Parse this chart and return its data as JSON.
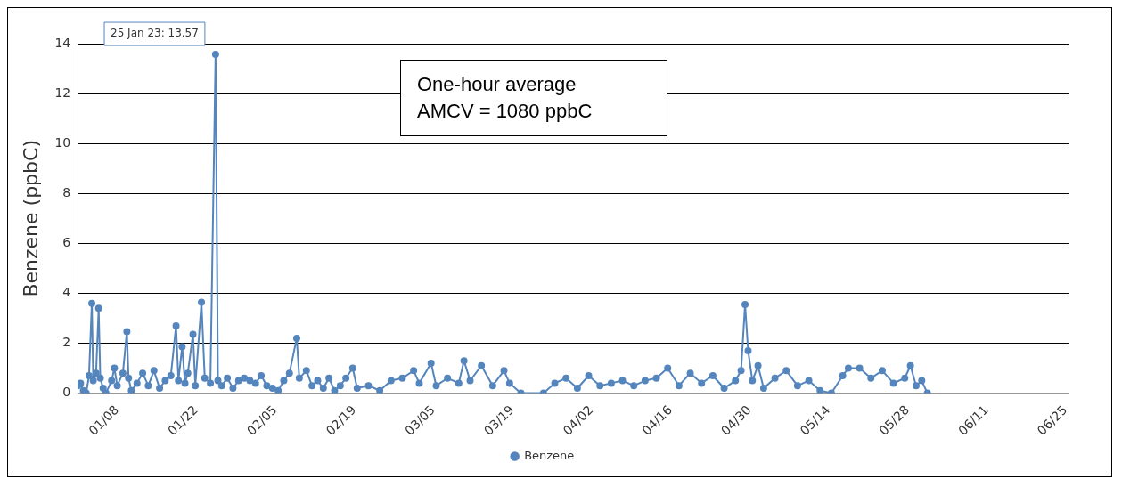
{
  "chart_data": {
    "type": "line",
    "ylabel": "Benzene (ppbC)",
    "annotations": [
      {
        "text": "25 Jan 23: 13.57",
        "x": "--01-25T10:00",
        "y": 13.57
      },
      "One-hour average\nAMCV = 1080 ppbC"
    ],
    "xlim": [
      "--01-01",
      "--06-25T12:00"
    ],
    "xticks": [
      {
        "value": "--01-08",
        "label": "01/08"
      },
      {
        "value": "--01-22",
        "label": "01/22"
      },
      {
        "value": "--02-05",
        "label": "02/05"
      },
      {
        "value": "--02-19",
        "label": "02/19"
      },
      {
        "value": "--03-05",
        "label": "03/05"
      },
      {
        "value": "--03-19",
        "label": "03/19"
      },
      {
        "value": "--04-02",
        "label": "04/02"
      },
      {
        "value": "--04-16",
        "label": "04/16"
      },
      {
        "value": "--04-30",
        "label": "04/30"
      },
      {
        "value": "--05-14",
        "label": "05/14"
      },
      {
        "value": "--05-28",
        "label": "05/28"
      },
      {
        "value": "--06-11",
        "label": "06/11"
      },
      {
        "value": "--06-25",
        "label": "06/25"
      }
    ],
    "ylim": [
      0,
      14
    ],
    "yticks": [
      0,
      2,
      4,
      6,
      8,
      10,
      12,
      14
    ],
    "grid": "y",
    "legend": "bottom",
    "marker": "circle",
    "line_style": "solid",
    "series": [
      {
        "name": "Benzene",
        "color": "#5585bd",
        "x": [
          "--01-01T00:00",
          "--01-01T12:00",
          "--01-02T00:00",
          "--01-02T12:00",
          "--01-03T00:00",
          "--01-03T12:00",
          "--01-03T18:00",
          "--01-04T06:00",
          "--01-04T17:00",
          "--01-05T00:00",
          "--01-05T12:00",
          "--01-06T00:00",
          "--01-07T00:00",
          "--01-07T12:00",
          "--01-08T00:00",
          "--01-09T00:00",
          "--01-09T17:00",
          "--01-10T00:00",
          "--01-10T12:00",
          "--01-11T12:00",
          "--01-12T12:00",
          "--01-13T12:00",
          "--01-14T12:00",
          "--01-15T12:00",
          "--01-16T12:00",
          "--01-17T12:00",
          "--01-18T10:00",
          "--01-18T20:00",
          "--01-19T12:00",
          "--01-20T00:00",
          "--01-20T12:00",
          "--01-21T10:00",
          "--01-21T20:00",
          "--01-22T22:00",
          "--01-23T12:00",
          "--01-24T12:00",
          "--01-25T10:00",
          "--01-25T20:00",
          "--01-26T12:00",
          "--01-27T12:00",
          "--01-28T12:00",
          "--01-29T12:00",
          "--01-30T12:00",
          "--01-31T12:00",
          "--02-01T12:00",
          "--02-02T12:00",
          "--02-03T12:00",
          "--02-04T12:00",
          "--02-05T12:00",
          "--02-06T12:00",
          "--02-07T12:00",
          "--02-08T19:00",
          "--02-09T06:00",
          "--02-10T12:00",
          "--02-11T12:00",
          "--02-12T12:00",
          "--02-13T12:00",
          "--02-14T12:00",
          "--02-15T12:00",
          "--02-16T12:00",
          "--02-17T12:00",
          "--02-18T17:00",
          "--02-19T12:00",
          "--02-21T12:00",
          "--02-23T12:00",
          "--02-25T12:00",
          "--02-27T12:00",
          "--03-01T12:00",
          "--03-02T12:00",
          "--03-04T14:00",
          "--03-05T12:00",
          "--03-07T12:00",
          "--03-09T12:00",
          "--03-10T10:00",
          "--03-11T12:00",
          "--03-13T12:00",
          "--03-15T12:00",
          "--03-17T12:00",
          "--03-18T12:00",
          "--03-20T12:00",
          "--03-24T12:00",
          "--03-26T12:00",
          "--03-28T12:00",
          "--03-30T12:00",
          "--04-01T12:00",
          "--04-03T12:00",
          "--04-05T12:00",
          "--04-07T12:00",
          "--04-09T12:00",
          "--04-11T12:00",
          "--04-13T12:00",
          "--04-15T12:00",
          "--04-17T12:00",
          "--04-19T12:00",
          "--04-21T12:00",
          "--04-23T12:00",
          "--04-25T12:00",
          "--04-27T12:00",
          "--04-28T12:00",
          "--04-29T05:00",
          "--04-29T18:00",
          "--04-30T12:00",
          "--05-01T12:00",
          "--05-02T12:00",
          "--05-04T12:00",
          "--05-06T12:00",
          "--05-08T12:00",
          "--05-10T12:00",
          "--05-12T12:00",
          "--05-14T12:00",
          "--05-16T12:00",
          "--05-17T12:00",
          "--05-19T12:00",
          "--05-21T12:00",
          "--05-23T12:00",
          "--05-25T12:00",
          "--05-27T12:00",
          "--05-28T12:00",
          "--05-29T12:00",
          "--05-30T12:00",
          "--05-31T12:00"
        ],
        "values": [
          0.3,
          0.4,
          0.1,
          0,
          0.7,
          3.6,
          0.5,
          0.8,
          3.4,
          0.6,
          0.2,
          0,
          0.5,
          1,
          0.3,
          0.8,
          2.46,
          0.6,
          0.1,
          0.4,
          0.8,
          0.3,
          0.9,
          0.2,
          0.5,
          0.7,
          2.7,
          0.5,
          1.86,
          0.4,
          0.8,
          2.36,
          0.3,
          3.64,
          0.6,
          0.4,
          13.57,
          0.5,
          0.3,
          0.6,
          0.2,
          0.5,
          0.6,
          0.5,
          0.4,
          0.7,
          0.3,
          0.2,
          0.1,
          0.5,
          0.8,
          2.2,
          0.6,
          0.9,
          0.3,
          0.5,
          0.2,
          0.6,
          0.1,
          0.3,
          0.6,
          1,
          0.2,
          0.3,
          0.1,
          0.5,
          0.6,
          0.9,
          0.4,
          1.2,
          0.3,
          0.6,
          0.4,
          1.3,
          0.5,
          1.1,
          0.3,
          0.9,
          0.4,
          0,
          0,
          0.4,
          0.6,
          0.2,
          0.7,
          0.3,
          0.4,
          0.5,
          0.3,
          0.5,
          0.6,
          1,
          0.3,
          0.8,
          0.4,
          0.7,
          0.2,
          0.5,
          0.9,
          3.55,
          1.7,
          0.5,
          1.1,
          0.2,
          0.6,
          0.9,
          0.3,
          0.5,
          0.1,
          0,
          0.7,
          1,
          1,
          0.6,
          0.9,
          0.4,
          0.6,
          1.1,
          0.3,
          0.5,
          0
        ]
      }
    ]
  }
}
